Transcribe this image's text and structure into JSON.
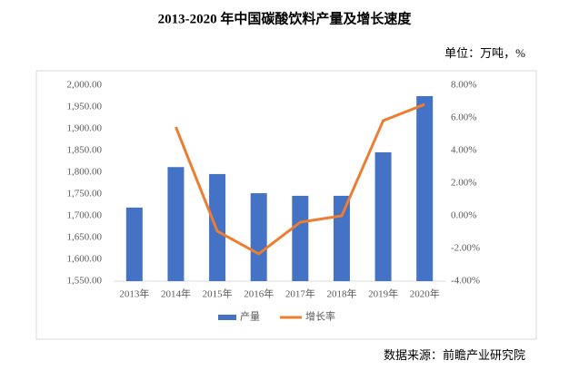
{
  "chart_data": {
    "type": "bar-line",
    "title": "2013-2020 年中国碳酸饮料产量及增长速度",
    "unit_note": "单位：万吨，%",
    "source": "数据来源：前瞻产业研究院",
    "categories": [
      "2013年",
      "2014年",
      "2015年",
      "2016年",
      "2017年",
      "2018年",
      "2019年",
      "2020年"
    ],
    "series": [
      {
        "name": "产量",
        "type": "bar",
        "color": "#4472c4",
        "values": [
          1719,
          1812,
          1796,
          1752,
          1746,
          1746,
          1846,
          1975
        ]
      },
      {
        "name": "增长率",
        "type": "line",
        "axis": "y2",
        "color": "#ed7d31",
        "values": [
          null,
          5.44,
          -0.94,
          -2.33,
          -0.39,
          0.0,
          5.83,
          6.83
        ]
      }
    ],
    "ylim": [
      1550,
      2000
    ],
    "yticks": [
      {
        "value": 1550,
        "label": "1,550.00"
      },
      {
        "value": 1600,
        "label": "1,600.00"
      },
      {
        "value": 1650,
        "label": "1,650.00"
      },
      {
        "value": 1700,
        "label": "1,700.00"
      },
      {
        "value": 1750,
        "label": "1,750.00"
      },
      {
        "value": 1800,
        "label": "1,800.00"
      },
      {
        "value": 1850,
        "label": "1,850.00"
      },
      {
        "value": 1900,
        "label": "1,900.00"
      },
      {
        "value": 1950,
        "label": "1,950.00"
      },
      {
        "value": 2000,
        "label": "2,000.00"
      }
    ],
    "y2lim": [
      -4,
      8
    ],
    "y2ticks": [
      {
        "value": -4,
        "label": "-4.00%"
      },
      {
        "value": -2,
        "label": "-2.00%"
      },
      {
        "value": 0,
        "label": "0.00%"
      },
      {
        "value": 2,
        "label": "2.00%"
      },
      {
        "value": 4,
        "label": "4.00%"
      },
      {
        "value": 6,
        "label": "6.00%"
      },
      {
        "value": 8,
        "label": "8.00%"
      }
    ],
    "legend": "bottom"
  }
}
